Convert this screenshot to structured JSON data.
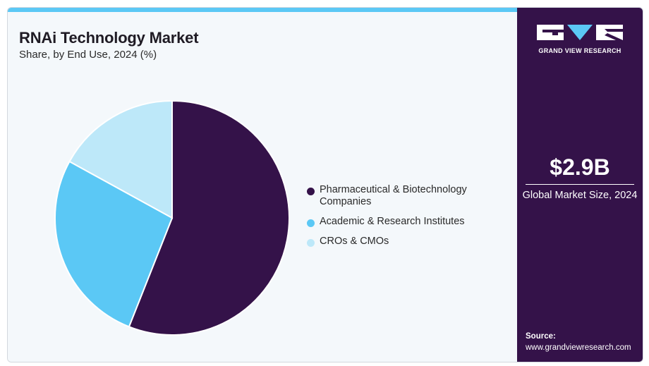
{
  "chart_data": {
    "type": "pie",
    "title": "RNAi Technology Market",
    "subtitle": "Share, by End Use, 2024 (%)",
    "slices": [
      {
        "label": "Pharmaceutical & Biotechnology Companies",
        "value": 56,
        "color": "#341249"
      },
      {
        "label": "Academic & Research Institutes",
        "value": 27,
        "color": "#5bc8f5"
      },
      {
        "label": "CROs & CMOs",
        "value": 17,
        "color": "#bde8f9"
      }
    ],
    "legend_position": "right"
  },
  "sidebar": {
    "brand": "GRAND VIEW RESEARCH",
    "metric_value": "$2.9B",
    "metric_label": "Global Market Size, 2024",
    "source_label": "Source:",
    "source_url": "www.grandviewresearch.com",
    "accent_color": "#5bc8f5",
    "panel_color": "#341249"
  }
}
